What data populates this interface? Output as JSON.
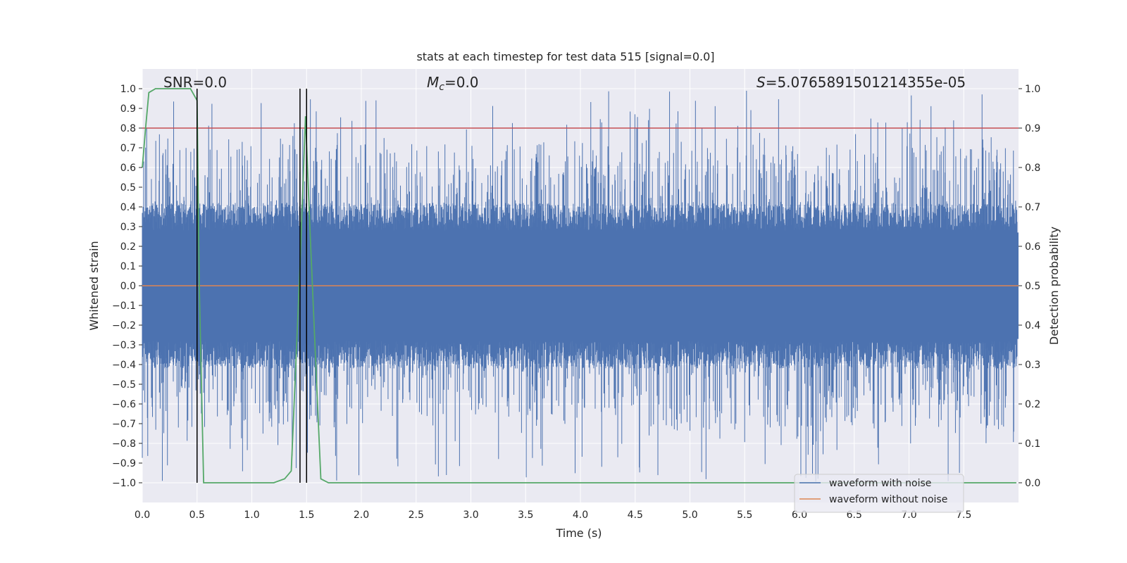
{
  "chart_data": {
    "type": "line",
    "title": "stats at each timestep for test data 515 [signal=0.0]",
    "xlabel": "Time (s)",
    "ylabel": "Whitened strain",
    "y2label": "Detection probability",
    "xlim": [
      0.0,
      8.0
    ],
    "ylim": [
      -1.1,
      1.1
    ],
    "y2lim": [
      -0.05,
      1.05
    ],
    "grid": true,
    "x_ticks": [
      "0.0",
      "0.5",
      "1.0",
      "1.5",
      "2.0",
      "2.5",
      "3.0",
      "3.5",
      "4.0",
      "4.5",
      "5.0",
      "5.5",
      "6.0",
      "6.5",
      "7.0",
      "7.5"
    ],
    "x_tick_values": [
      0.0,
      0.5,
      1.0,
      1.5,
      2.0,
      2.5,
      3.0,
      3.5,
      4.0,
      4.5,
      5.0,
      5.5,
      6.0,
      6.5,
      7.0,
      7.5
    ],
    "y_ticks": [
      "1.0",
      "0.9",
      "0.8",
      "0.7",
      "0.6",
      "0.5",
      "0.4",
      "0.3",
      "0.2",
      "0.1",
      "0.0",
      "−0.1",
      "−0.2",
      "−0.3",
      "−0.4",
      "−0.5",
      "−0.6",
      "−0.7",
      "−0.8",
      "−0.9",
      "−1.0"
    ],
    "y_tick_values": [
      1.0,
      0.9,
      0.8,
      0.7,
      0.6,
      0.5,
      0.4,
      0.3,
      0.2,
      0.1,
      0.0,
      -0.1,
      -0.2,
      -0.3,
      -0.4,
      -0.5,
      -0.6,
      -0.7,
      -0.8,
      -0.9,
      -1.0
    ],
    "y2_ticks": [
      "1.0",
      "0.9",
      "0.8",
      "0.7",
      "0.6",
      "0.5",
      "0.4",
      "0.3",
      "0.2",
      "0.1",
      "0.0"
    ],
    "y2_tick_values": [
      1.0,
      0.9,
      0.8,
      0.7,
      0.6,
      0.5,
      0.4,
      0.3,
      0.2,
      0.1,
      0.0
    ],
    "annotations": {
      "snr": "SNR=0.0",
      "mc_symbol": "M",
      "mc_subscript": "c",
      "mc_value": "=0.0",
      "s_symbol": "S",
      "s_value": "=5.0765891501214355e-05"
    },
    "series": [
      {
        "name": "waveform with noise",
        "color": "#4c72b0",
        "axis": "left",
        "description_level": "dense noise trace, core amplitude about ±0.4, spikes up to about ±1.0"
      },
      {
        "name": "waveform without noise",
        "color": "#dd8452",
        "axis": "left",
        "values_constant": 0.0
      },
      {
        "name": "detection probability",
        "color": "#55a868",
        "axis": "right",
        "x": [
          0.0,
          0.03,
          0.06,
          0.12,
          0.2,
          0.3,
          0.44,
          0.5,
          0.52,
          0.56,
          0.6,
          0.8,
          1.0,
          1.2,
          1.3,
          1.36,
          1.44,
          1.49,
          1.53,
          1.6,
          1.63,
          1.7,
          2.0,
          3.0,
          4.0,
          5.0,
          6.0,
          7.0,
          7.98
        ],
        "values": [
          0.8,
          0.9,
          0.99,
          1.0,
          1.0,
          1.0,
          1.0,
          0.97,
          0.5,
          0.0,
          0.0,
          0.0,
          0.0,
          0.0,
          0.01,
          0.03,
          0.55,
          0.93,
          0.65,
          0.2,
          0.01,
          0.0,
          0.0,
          0.0,
          0.0,
          0.0,
          0.0,
          0.0,
          0.0
        ]
      }
    ],
    "threshold": {
      "value": 0.9,
      "axis": "right",
      "color": "#c44e52"
    },
    "vertical_lines": [
      0.5,
      1.44,
      1.5
    ],
    "legend": {
      "placement": "bottom-right",
      "entries": [
        {
          "label": "waveform with noise",
          "color": "#4c72b0"
        },
        {
          "label": "waveform without noise",
          "color": "#dd8452"
        }
      ]
    },
    "colors": {
      "plot_bg": "#eaeaf2",
      "grid": "#ffffff"
    }
  }
}
